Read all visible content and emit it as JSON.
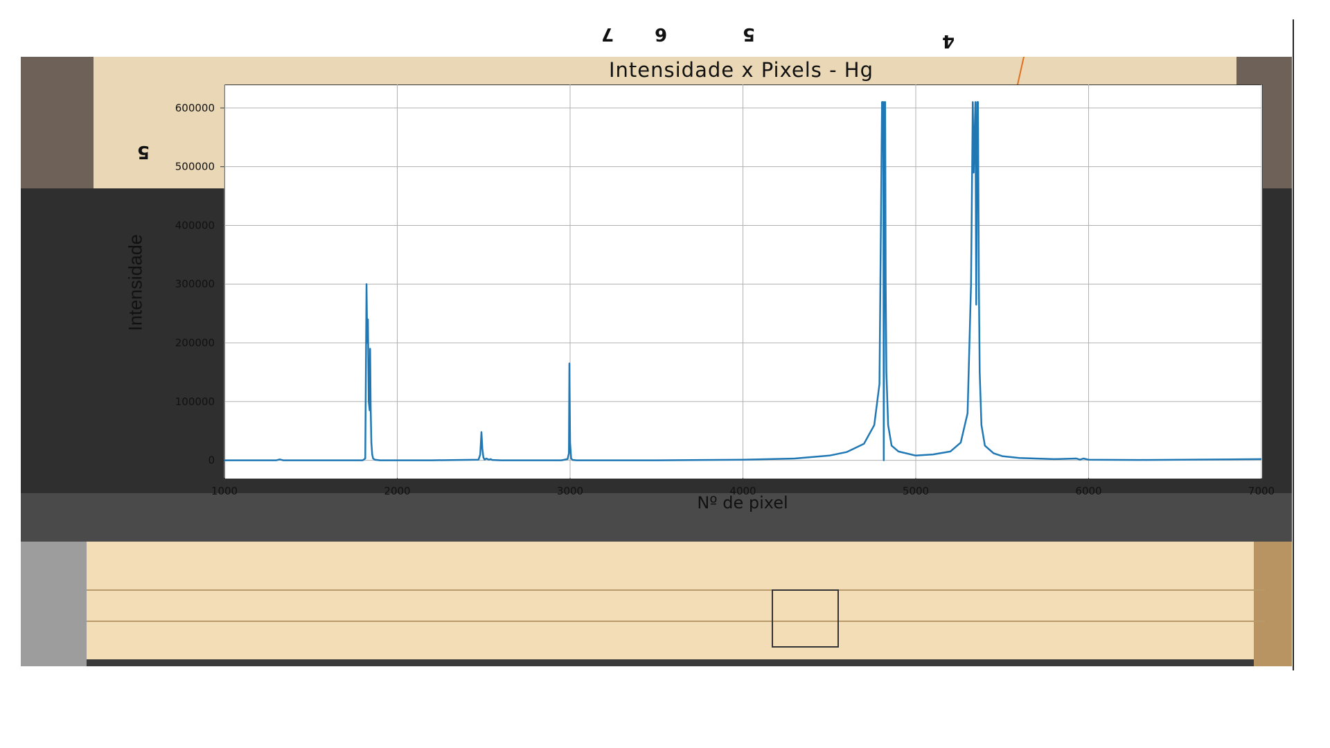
{
  "chart_data": {
    "type": "line",
    "title": "Intensidade x Pixels - Hg",
    "xlabel": "Nº de pixel",
    "ylabel": "Intensidade",
    "xlim": [
      1000,
      7000
    ],
    "ylim": [
      -30000,
      640000
    ],
    "xticks": [
      1000,
      2000,
      3000,
      4000,
      5000,
      6000,
      7000
    ],
    "yticks": [
      0,
      100000,
      200000,
      300000,
      400000,
      500000,
      600000
    ],
    "grid": true,
    "series": [
      {
        "color": "#1f77b4",
        "x": [
          1000,
          1300,
          1320,
          1340,
          1800,
          1815,
          1822,
          1826,
          1830,
          1835,
          1840,
          1843,
          1846,
          1850,
          1855,
          1860,
          1870,
          1900,
          2200,
          2470,
          2480,
          2487,
          2492,
          2498,
          2505,
          2515,
          2530,
          2540,
          2550,
          2600,
          2950,
          2985,
          2993,
          2996,
          3000,
          3006,
          3015,
          3040,
          3500,
          4000,
          4300,
          4500,
          4600,
          4700,
          4760,
          4790,
          4805,
          4812,
          4815,
          4820,
          4823,
          4826,
          4830,
          4840,
          4860,
          4900,
          5000,
          5100,
          5200,
          5260,
          5300,
          5320,
          5330,
          5335,
          5345,
          5350,
          5356,
          5360,
          5365,
          5370,
          5380,
          5400,
          5450,
          5500,
          5600,
          5800,
          5930,
          5950,
          5970,
          6000,
          6300,
          7000
        ],
        "y": [
          0,
          0,
          1500,
          0,
          0,
          3000,
          300000,
          200000,
          240000,
          100000,
          85000,
          190000,
          90000,
          30000,
          10000,
          3000,
          1000,
          0,
          0,
          1000,
          10000,
          48000,
          20000,
          5000,
          1000,
          3000,
          1000,
          2000,
          500,
          0,
          0,
          2000,
          12000,
          165000,
          30000,
          3000,
          500,
          0,
          0,
          1000,
          3000,
          8000,
          14000,
          28000,
          60000,
          130000,
          610000,
          610000,
          0,
          610000,
          610000,
          300000,
          150000,
          60000,
          25000,
          15000,
          8000,
          10000,
          15000,
          30000,
          80000,
          300000,
          610000,
          490000,
          610000,
          265000,
          610000,
          610000,
          300000,
          150000,
          60000,
          25000,
          12000,
          7000,
          4000,
          2000,
          3000,
          1000,
          3000,
          1000,
          500,
          2000
        ]
      }
    ]
  },
  "annotations": {
    "top_digits": [
      "7",
      "6",
      "5",
      "4"
    ],
    "left_digit": "5"
  }
}
